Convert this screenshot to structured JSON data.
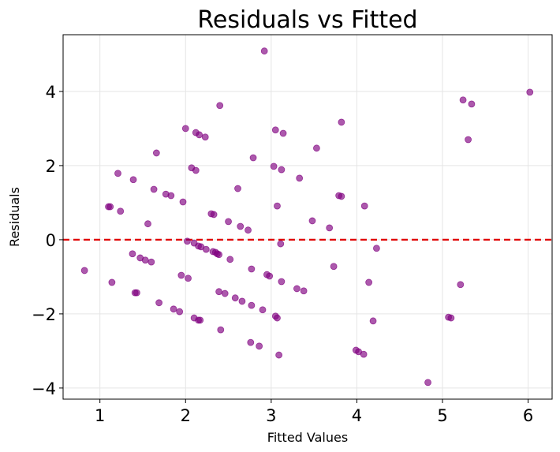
{
  "chart_data": {
    "type": "scatter",
    "title": "Residuals vs Fitted",
    "xlabel": "Fitted Values",
    "ylabel": "Residuals",
    "xlim": [
      0.57,
      6.28
    ],
    "ylim": [
      -4.3,
      5.53
    ],
    "xticks": [
      1,
      2,
      3,
      4,
      5,
      6
    ],
    "yticks": [
      -4,
      -2,
      0,
      2,
      4
    ],
    "ytick_labels": [
      "−4",
      "−2",
      "0",
      "2",
      "4"
    ],
    "xtick_labels": [
      "1",
      "2",
      "3",
      "4",
      "5",
      "6"
    ],
    "grid": true,
    "point_color": "#800080",
    "reference_line": {
      "y": 0,
      "color": "#e00000",
      "style": "dashed"
    },
    "points": [
      [
        0.82,
        -0.83
      ],
      [
        1.1,
        0.89
      ],
      [
        1.12,
        0.89
      ],
      [
        1.14,
        -1.15
      ],
      [
        1.21,
        1.79
      ],
      [
        1.24,
        0.77
      ],
      [
        1.38,
        -0.38
      ],
      [
        1.39,
        1.62
      ],
      [
        1.41,
        -1.43
      ],
      [
        1.43,
        -1.43
      ],
      [
        1.47,
        -0.49
      ],
      [
        1.53,
        -0.55
      ],
      [
        1.56,
        0.43
      ],
      [
        1.6,
        -0.6
      ],
      [
        1.63,
        1.36
      ],
      [
        1.66,
        2.34
      ],
      [
        1.69,
        -1.7
      ],
      [
        1.77,
        1.23
      ],
      [
        1.83,
        1.19
      ],
      [
        1.86,
        -1.87
      ],
      [
        1.93,
        -1.94
      ],
      [
        1.95,
        -0.96
      ],
      [
        1.97,
        1.02
      ],
      [
        2.0,
        3.0
      ],
      [
        2.02,
        -0.04
      ],
      [
        2.03,
        -1.04
      ],
      [
        2.07,
        1.94
      ],
      [
        2.1,
        -0.09
      ],
      [
        2.1,
        -2.11
      ],
      [
        2.12,
        2.89
      ],
      [
        2.12,
        1.87
      ],
      [
        2.15,
        -0.17
      ],
      [
        2.16,
        2.83
      ],
      [
        2.15,
        -2.17
      ],
      [
        2.17,
        -2.17
      ],
      [
        2.18,
        -0.19
      ],
      [
        2.23,
        2.77
      ],
      [
        2.24,
        -0.26
      ],
      [
        2.3,
        0.7
      ],
      [
        2.32,
        -0.32
      ],
      [
        2.33,
        0.68
      ],
      [
        2.35,
        -0.34
      ],
      [
        2.37,
        -0.38
      ],
      [
        2.39,
        -0.4
      ],
      [
        2.39,
        -1.4
      ],
      [
        2.4,
        3.62
      ],
      [
        2.41,
        -2.43
      ],
      [
        2.46,
        -1.45
      ],
      [
        2.5,
        0.49
      ],
      [
        2.52,
        -0.53
      ],
      [
        2.58,
        -1.57
      ],
      [
        2.61,
        1.38
      ],
      [
        2.64,
        0.36
      ],
      [
        2.66,
        -1.66
      ],
      [
        2.73,
        0.26
      ],
      [
        2.76,
        -2.77
      ],
      [
        2.77,
        -0.79
      ],
      [
        2.77,
        -1.77
      ],
      [
        2.79,
        2.21
      ],
      [
        2.86,
        -2.87
      ],
      [
        2.9,
        -1.89
      ],
      [
        2.92,
        5.09
      ],
      [
        2.95,
        -0.94
      ],
      [
        2.98,
        -0.98
      ],
      [
        3.03,
        1.98
      ],
      [
        3.05,
        2.96
      ],
      [
        3.05,
        -2.06
      ],
      [
        3.07,
        0.91
      ],
      [
        3.07,
        -2.11
      ],
      [
        3.09,
        -3.11
      ],
      [
        3.11,
        -0.11
      ],
      [
        3.12,
        -1.13
      ],
      [
        3.12,
        1.89
      ],
      [
        3.14,
        2.87
      ],
      [
        3.3,
        -1.32
      ],
      [
        3.33,
        1.66
      ],
      [
        3.38,
        -1.38
      ],
      [
        3.48,
        0.51
      ],
      [
        3.53,
        2.47
      ],
      [
        3.68,
        0.32
      ],
      [
        3.73,
        -0.72
      ],
      [
        3.79,
        1.19
      ],
      [
        3.82,
        1.17
      ],
      [
        3.82,
        3.17
      ],
      [
        3.99,
        -2.98
      ],
      [
        4.02,
        -3.02
      ],
      [
        4.08,
        -3.09
      ],
      [
        4.09,
        0.91
      ],
      [
        4.14,
        -1.15
      ],
      [
        4.19,
        -2.19
      ],
      [
        4.23,
        -0.23
      ],
      [
        4.83,
        -3.85
      ],
      [
        5.07,
        -2.09
      ],
      [
        5.1,
        -2.11
      ],
      [
        5.21,
        -1.21
      ],
      [
        5.24,
        3.77
      ],
      [
        5.3,
        2.7
      ],
      [
        5.34,
        3.66
      ],
      [
        6.02,
        3.98
      ]
    ]
  }
}
